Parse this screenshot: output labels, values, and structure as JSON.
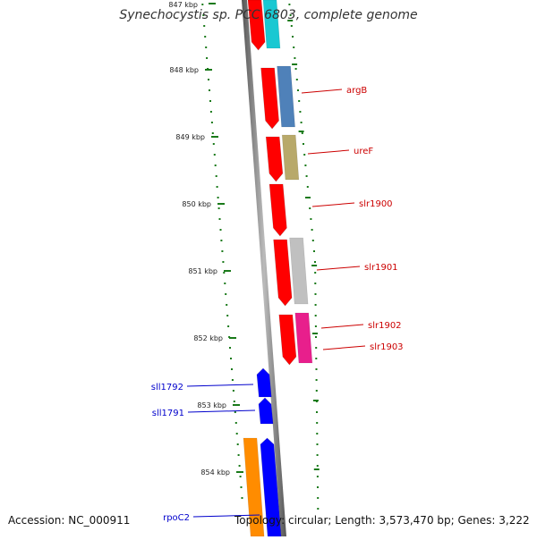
{
  "title": "Synechocystis sp. PCC 6803, complete genome",
  "footer": {
    "accession": "Accession: NC_000911",
    "summary": "Topology: circular; Length: 3,573,470 bp; Genes: 3,222"
  },
  "ruler": {
    "partial_label": "847 kbp",
    "ticks": [
      "848 kbp",
      "849 kbp",
      "850 kbp",
      "851 kbp",
      "852 kbp",
      "853 kbp",
      "854 kbp"
    ]
  },
  "genes_right": [
    {
      "name": "argB",
      "color": "#ff0000",
      "track_color": "#4f81b9"
    },
    {
      "name": "ureF",
      "color": "#ff0000",
      "track_color": "#b8a96a"
    },
    {
      "name": "slr1900",
      "color": "#ff0000",
      "track_color": ""
    },
    {
      "name": "slr1901",
      "color": "#ff0000",
      "track_color": "#c0c0c0"
    },
    {
      "name": "slr1902",
      "color": "#ff0000",
      "track_color": "#e81f8c"
    },
    {
      "name": "slr1903",
      "color": "#ff0000",
      "track_color": ""
    }
  ],
  "genes_left": [
    {
      "name": "sll1792",
      "color": "#0000ff"
    },
    {
      "name": "sll1791",
      "color": "#0000ff"
    },
    {
      "name": "rpoC2",
      "color": "#0000ff",
      "track_color": "#ff8c00"
    }
  ],
  "colors": {
    "forward_strand": "#ff0000",
    "reverse_strand": "#0000ff",
    "tick": "#1a7a1a",
    "backbone": "#888888",
    "label_forward": "#cc0000",
    "label_reverse": "#0000cc"
  }
}
